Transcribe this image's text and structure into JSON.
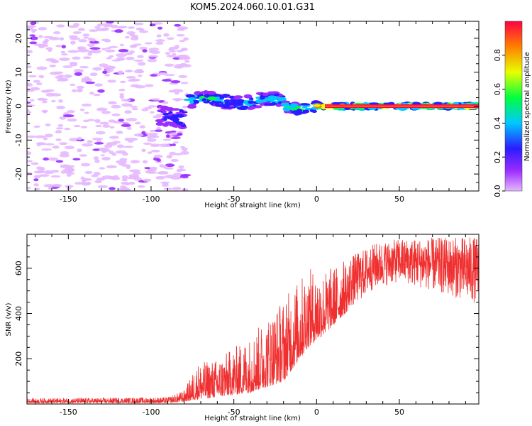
{
  "title": "KOM5.2024.060.10.01.G31",
  "chart_data": [
    {
      "type": "heatmap",
      "xlabel": "Height of straight line (km)",
      "ylabel": "Frequency (Hz)",
      "xlim": [
        -175,
        98
      ],
      "ylim": [
        -25,
        25
      ],
      "xticks": [
        -150,
        -100,
        -50,
        0,
        50
      ],
      "yticks": [
        -20,
        -10,
        0,
        10,
        20
      ],
      "colorbar": {
        "label": "Normalized spectral amplitude",
        "range": [
          0.0,
          1.0
        ],
        "ticks": [
          "0.0",
          "0.2",
          "0.4",
          "0.6",
          "0.8"
        ],
        "colormap": "gist_rainbow",
        "colors": [
          "#e6b8ff",
          "#9b2cff",
          "#2a1dff",
          "#00c8ff",
          "#00ff40",
          "#e8ff00",
          "#ff8000",
          "#ff0044"
        ]
      },
      "regions": [
        {
          "name": "noise",
          "x_range": [
            -175,
            -78
          ],
          "freq_range": [
            -25,
            25
          ],
          "amplitude": 0.05
        },
        {
          "name": "dispersed-signal",
          "x_range": [
            -95,
            -80
          ],
          "freq_center": -3,
          "freq_halfwidth": 3,
          "amplitude": 0.3
        },
        {
          "name": "signal",
          "x_range": [
            -78,
            -20
          ],
          "freq_center": 1.5,
          "freq_halfwidth": 2,
          "amplitude": 0.45
        },
        {
          "name": "signal",
          "x_range": [
            -20,
            0
          ],
          "freq_center": 0,
          "freq_halfwidth": 1.5,
          "amplitude": 0.6
        },
        {
          "name": "carrier",
          "x_range": [
            0,
            98
          ],
          "freq_center": 0,
          "freq_halfwidth": 0.8,
          "amplitude": 0.95
        }
      ]
    },
    {
      "type": "line",
      "xlabel": "Height of straight line (km)",
      "ylabel": "SNR (v/v)",
      "xlim": [
        -175,
        98
      ],
      "ylim": [
        0,
        750
      ],
      "xticks": [
        -150,
        -100,
        -50,
        0,
        50
      ],
      "yticks": [
        200,
        400,
        600
      ],
      "color": "#f03030",
      "envelope": [
        {
          "x": -175,
          "lo": 5,
          "hi": 25
        },
        {
          "x": -90,
          "lo": 5,
          "hi": 30
        },
        {
          "x": -80,
          "lo": 10,
          "hi": 60
        },
        {
          "x": -72,
          "lo": 20,
          "hi": 180
        },
        {
          "x": -60,
          "lo": 30,
          "hi": 200
        },
        {
          "x": -40,
          "lo": 50,
          "hi": 300
        },
        {
          "x": -20,
          "lo": 100,
          "hi": 470
        },
        {
          "x": -5,
          "lo": 250,
          "hi": 600
        },
        {
          "x": 5,
          "lo": 310,
          "hi": 590
        },
        {
          "x": 20,
          "lo": 420,
          "hi": 650
        },
        {
          "x": 35,
          "lo": 510,
          "hi": 710
        },
        {
          "x": 50,
          "lo": 540,
          "hi": 730
        },
        {
          "x": 70,
          "lo": 500,
          "hi": 735
        },
        {
          "x": 98,
          "lo": 440,
          "hi": 740
        }
      ]
    }
  ]
}
